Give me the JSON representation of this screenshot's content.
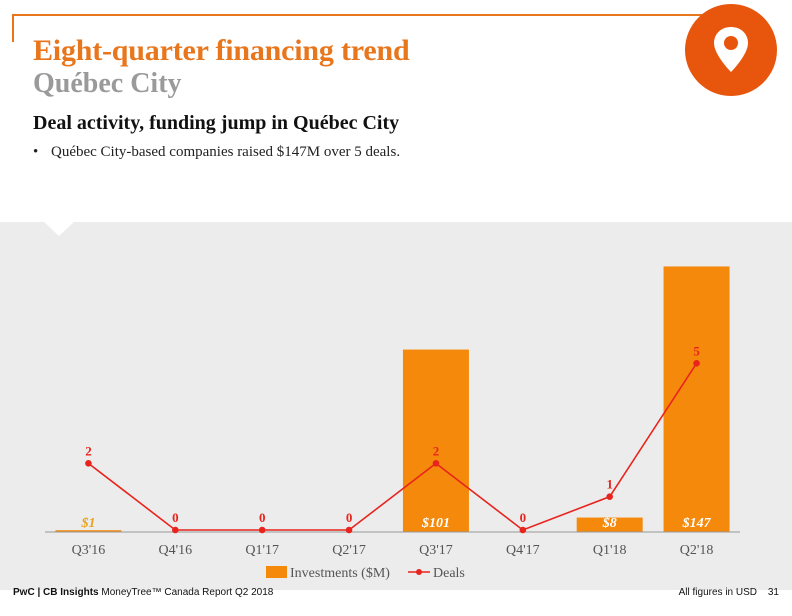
{
  "header": {
    "title": "Eight-quarter financing trend",
    "subtitle": "Québec City",
    "badge_icon": "location-pin-icon",
    "accent": "#e8761d"
  },
  "summary": {
    "headline": "Deal activity, funding jump in Québec City",
    "bullets": [
      "Québec City-based companies raised $147M over 5 deals."
    ]
  },
  "chart_data": {
    "type": "bar",
    "categories": [
      "Q3'16",
      "Q4'16",
      "Q1'17",
      "Q2'17",
      "Q3'17",
      "Q4'17",
      "Q1'18",
      "Q2'18"
    ],
    "series": [
      {
        "name": "Investments ($M)",
        "type": "bar",
        "color": "#f5890b",
        "values": [
          1,
          0,
          0,
          0,
          101,
          0,
          8,
          147
        ],
        "labels": [
          "$1",
          "",
          "",
          "",
          "$101",
          "",
          "$8",
          "$147"
        ]
      },
      {
        "name": "Deals",
        "type": "line",
        "color": "#e8241d",
        "values": [
          2,
          0,
          0,
          0,
          2,
          0,
          1,
          5
        ],
        "labels": [
          "2",
          "0",
          "0",
          "0",
          "2",
          "0",
          "1",
          "5"
        ]
      }
    ],
    "ylim": [
      0,
      155
    ],
    "y2lim": [
      0,
      8.4
    ],
    "grid": false,
    "legend": "bottom-center"
  },
  "footer": {
    "brand": "PwC | CB Insights",
    "report": "MoneyTree™ Canada Report Q2 2018",
    "note": "All figures in USD",
    "page": "31"
  }
}
